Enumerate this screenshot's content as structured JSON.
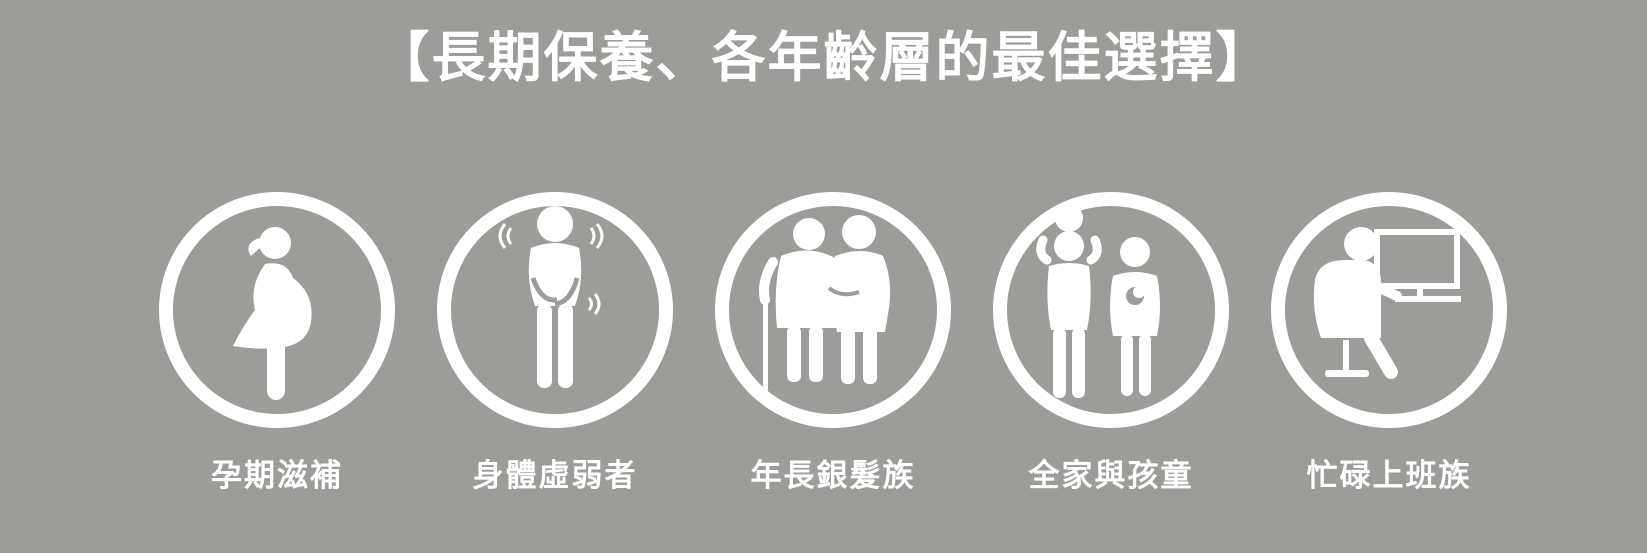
{
  "title": "【長期保養、各年齡層的最佳選擇】",
  "colors": {
    "background": "#9c9d99",
    "foreground": "#ffffff"
  },
  "items": [
    {
      "label": "孕期滋補",
      "icon": "pregnant-woman-icon"
    },
    {
      "label": "身體虛弱者",
      "icon": "weak-person-icon"
    },
    {
      "label": "年長銀髮族",
      "icon": "elderly-couple-icon"
    },
    {
      "label": "全家與孩童",
      "icon": "family-children-icon"
    },
    {
      "label": "忙碌上班族",
      "icon": "office-worker-icon"
    }
  ]
}
